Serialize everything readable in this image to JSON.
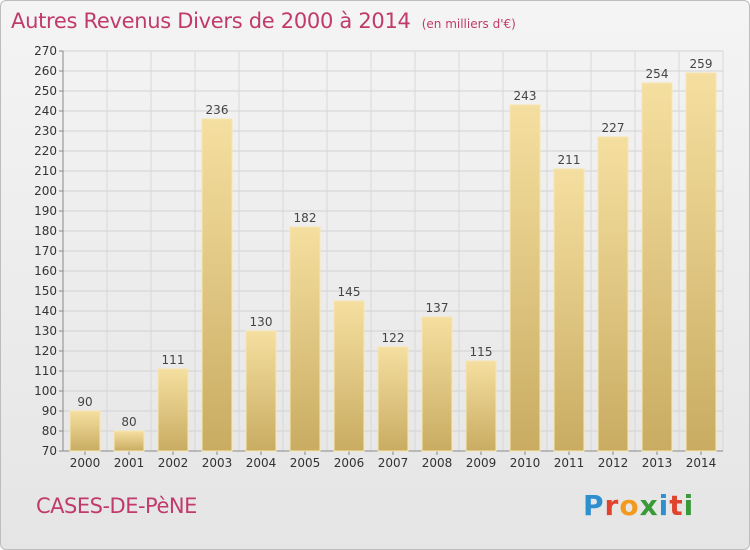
{
  "header": {
    "title": "Autres Revenus Divers de 2000 à 2014",
    "subtitle": "(en milliers d'€)"
  },
  "footer": {
    "commune": "CASES-DE-PèNE",
    "logo_text": "Proxiti",
    "logo_colors": [
      "#2e8fd0",
      "#e0432e",
      "#f39a1e",
      "#3a9a3a",
      "#2e8fd0",
      "#e0432e",
      "#3a9a3a"
    ]
  },
  "chart_data": {
    "type": "bar",
    "title": "Autres Revenus Divers de 2000 à 2014",
    "subtitle": "(en milliers d'€)",
    "categories": [
      "2000",
      "2001",
      "2002",
      "2003",
      "2004",
      "2005",
      "2006",
      "2007",
      "2008",
      "2009",
      "2010",
      "2011",
      "2012",
      "2013",
      "2014"
    ],
    "values": [
      90,
      80,
      111,
      236,
      130,
      182,
      145,
      122,
      137,
      115,
      243,
      211,
      227,
      254,
      259
    ],
    "ylim": [
      70,
      270
    ],
    "yticks": [
      70,
      80,
      90,
      100,
      110,
      120,
      130,
      140,
      150,
      160,
      170,
      180,
      190,
      200,
      210,
      220,
      230,
      240,
      250,
      260,
      270
    ],
    "grid": true,
    "bar_color_top": "#f5dfa0",
    "bar_color_bottom": "#c9ac62",
    "bar_edge": "#f7e6b0"
  }
}
